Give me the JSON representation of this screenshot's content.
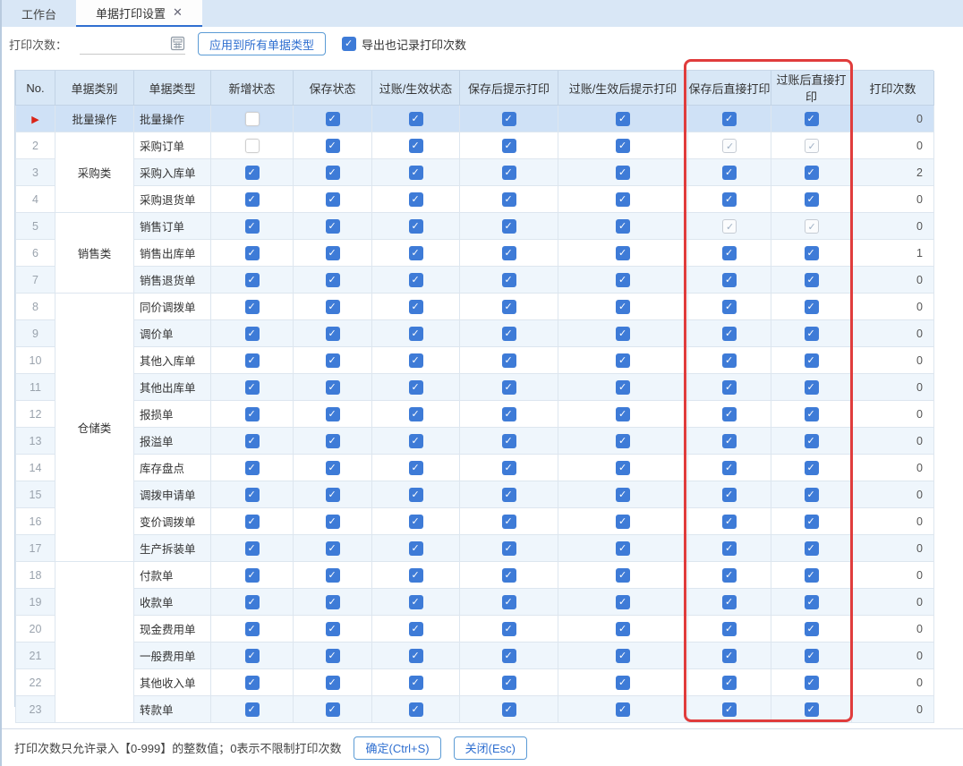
{
  "tabs": [
    {
      "label": "工作台",
      "active": false,
      "closable": false
    },
    {
      "label": "单据打印设置",
      "active": true,
      "closable": true
    }
  ],
  "toolbar": {
    "print_count_label": "打印次数：",
    "print_count_value": "",
    "calculator_icon": "calculator-icon",
    "apply_button": "应用到所有单据类型",
    "export_checkbox_label": "导出也记录打印次数",
    "export_checkbox_checked": true
  },
  "highlight": {
    "color": "#e03c3c",
    "highlighted_columns": [
      "保存后直接打印",
      "过账后直接打印"
    ]
  },
  "table": {
    "headers": [
      "No.",
      "单据类别",
      "单据类型",
      "新增状态",
      "保存状态",
      "过账/生效状态",
      "保存后提示打印",
      "过账/生效后提示打印",
      "保存后直接打印",
      "过账后直接打印",
      "打印次数"
    ],
    "rows": [
      {
        "no": "",
        "selected": true,
        "marker_icon": "current-row-arrow",
        "category": {
          "label": "批量操作",
          "rowspan": 1
        },
        "type": "批量操作",
        "checks": {
          "new": "unchecked",
          "save": "checked",
          "post": "checked",
          "save_prompt": "checked",
          "post_prompt": "checked",
          "save_direct": "checked",
          "post_direct": "checked"
        },
        "count": "0"
      },
      {
        "no": "2",
        "category": {
          "label": "采购类",
          "rowspan": 3
        },
        "type": "采购订单",
        "checks": {
          "new": "unchecked",
          "save": "checked",
          "post": "checked",
          "save_prompt": "checked",
          "post_prompt": "checked",
          "save_direct": "disabled",
          "post_direct": "disabled"
        },
        "count": "0"
      },
      {
        "no": "3",
        "type": "采购入库单",
        "checks": {
          "new": "checked",
          "save": "checked",
          "post": "checked",
          "save_prompt": "checked",
          "post_prompt": "checked",
          "save_direct": "checked",
          "post_direct": "checked"
        },
        "count": "2"
      },
      {
        "no": "4",
        "type": "采购退货单",
        "checks": {
          "new": "checked",
          "save": "checked",
          "post": "checked",
          "save_prompt": "checked",
          "post_prompt": "checked",
          "save_direct": "checked",
          "post_direct": "checked"
        },
        "count": "0"
      },
      {
        "no": "5",
        "category": {
          "label": "销售类",
          "rowspan": 3
        },
        "type": "销售订单",
        "checks": {
          "new": "checked",
          "save": "checked",
          "post": "checked",
          "save_prompt": "checked",
          "post_prompt": "checked",
          "save_direct": "disabled",
          "post_direct": "disabled"
        },
        "count": "0"
      },
      {
        "no": "6",
        "type": "销售出库单",
        "checks": {
          "new": "checked",
          "save": "checked",
          "post": "checked",
          "save_prompt": "checked",
          "post_prompt": "checked",
          "save_direct": "checked",
          "post_direct": "checked"
        },
        "count": "1"
      },
      {
        "no": "7",
        "type": "销售退货单",
        "checks": {
          "new": "checked",
          "save": "checked",
          "post": "checked",
          "save_prompt": "checked",
          "post_prompt": "checked",
          "save_direct": "checked",
          "post_direct": "checked"
        },
        "count": "0"
      },
      {
        "no": "8",
        "category": {
          "label": "仓储类",
          "rowspan": 10
        },
        "type": "同价调拨单",
        "checks": {
          "new": "checked",
          "save": "checked",
          "post": "checked",
          "save_prompt": "checked",
          "post_prompt": "checked",
          "save_direct": "checked",
          "post_direct": "checked"
        },
        "count": "0"
      },
      {
        "no": "9",
        "type": "调价单",
        "checks": {
          "new": "checked",
          "save": "checked",
          "post": "checked",
          "save_prompt": "checked",
          "post_prompt": "checked",
          "save_direct": "checked",
          "post_direct": "checked"
        },
        "count": "0"
      },
      {
        "no": "10",
        "type": "其他入库单",
        "checks": {
          "new": "checked",
          "save": "checked",
          "post": "checked",
          "save_prompt": "checked",
          "post_prompt": "checked",
          "save_direct": "checked",
          "post_direct": "checked"
        },
        "count": "0"
      },
      {
        "no": "11",
        "type": "其他出库单",
        "checks": {
          "new": "checked",
          "save": "checked",
          "post": "checked",
          "save_prompt": "checked",
          "post_prompt": "checked",
          "save_direct": "checked",
          "post_direct": "checked"
        },
        "count": "0"
      },
      {
        "no": "12",
        "type": "报损单",
        "checks": {
          "new": "checked",
          "save": "checked",
          "post": "checked",
          "save_prompt": "checked",
          "post_prompt": "checked",
          "save_direct": "checked",
          "post_direct": "checked"
        },
        "count": "0"
      },
      {
        "no": "13",
        "type": "报溢单",
        "checks": {
          "new": "checked",
          "save": "checked",
          "post": "checked",
          "save_prompt": "checked",
          "post_prompt": "checked",
          "save_direct": "checked",
          "post_direct": "checked"
        },
        "count": "0"
      },
      {
        "no": "14",
        "type": "库存盘点",
        "checks": {
          "new": "checked",
          "save": "checked",
          "post": "checked",
          "save_prompt": "checked",
          "post_prompt": "checked",
          "save_direct": "checked",
          "post_direct": "checked"
        },
        "count": "0"
      },
      {
        "no": "15",
        "type": "调拨申请单",
        "checks": {
          "new": "checked",
          "save": "checked",
          "post": "checked",
          "save_prompt": "checked",
          "post_prompt": "checked",
          "save_direct": "checked",
          "post_direct": "checked"
        },
        "count": "0"
      },
      {
        "no": "16",
        "type": "变价调拨单",
        "checks": {
          "new": "checked",
          "save": "checked",
          "post": "checked",
          "save_prompt": "checked",
          "post_prompt": "checked",
          "save_direct": "checked",
          "post_direct": "checked"
        },
        "count": "0"
      },
      {
        "no": "17",
        "type": "生产拆装单",
        "checks": {
          "new": "checked",
          "save": "checked",
          "post": "checked",
          "save_prompt": "checked",
          "post_prompt": "checked",
          "save_direct": "checked",
          "post_direct": "checked"
        },
        "count": "0"
      },
      {
        "no": "18",
        "category": {
          "label": "",
          "rowspan": 6
        },
        "type": "付款单",
        "checks": {
          "new": "checked",
          "save": "checked",
          "post": "checked",
          "save_prompt": "checked",
          "post_prompt": "checked",
          "save_direct": "checked",
          "post_direct": "checked"
        },
        "count": "0"
      },
      {
        "no": "19",
        "type": "收款单",
        "checks": {
          "new": "checked",
          "save": "checked",
          "post": "checked",
          "save_prompt": "checked",
          "post_prompt": "checked",
          "save_direct": "checked",
          "post_direct": "checked"
        },
        "count": "0"
      },
      {
        "no": "20",
        "type": "现金费用单",
        "checks": {
          "new": "checked",
          "save": "checked",
          "post": "checked",
          "save_prompt": "checked",
          "post_prompt": "checked",
          "save_direct": "checked",
          "post_direct": "checked"
        },
        "count": "0"
      },
      {
        "no": "21",
        "type": "一般费用单",
        "checks": {
          "new": "checked",
          "save": "checked",
          "post": "checked",
          "save_prompt": "checked",
          "post_prompt": "checked",
          "save_direct": "checked",
          "post_direct": "checked"
        },
        "count": "0"
      },
      {
        "no": "22",
        "type": "其他收入单",
        "checks": {
          "new": "checked",
          "save": "checked",
          "post": "checked",
          "save_prompt": "checked",
          "post_prompt": "checked",
          "save_direct": "checked",
          "post_direct": "checked"
        },
        "count": "0"
      },
      {
        "no": "23",
        "type": "转款单",
        "checks": {
          "new": "checked",
          "save": "checked",
          "post": "checked",
          "save_prompt": "checked",
          "post_prompt": "checked",
          "save_direct": "checked",
          "post_direct": "checked"
        },
        "count": "0"
      }
    ]
  },
  "footer": {
    "hint": "打印次数只允许录入【0-999】的整数值；0表示不限制打印次数",
    "ok_button": "确定(Ctrl+S)",
    "close_button": "关闭(Esc)"
  }
}
